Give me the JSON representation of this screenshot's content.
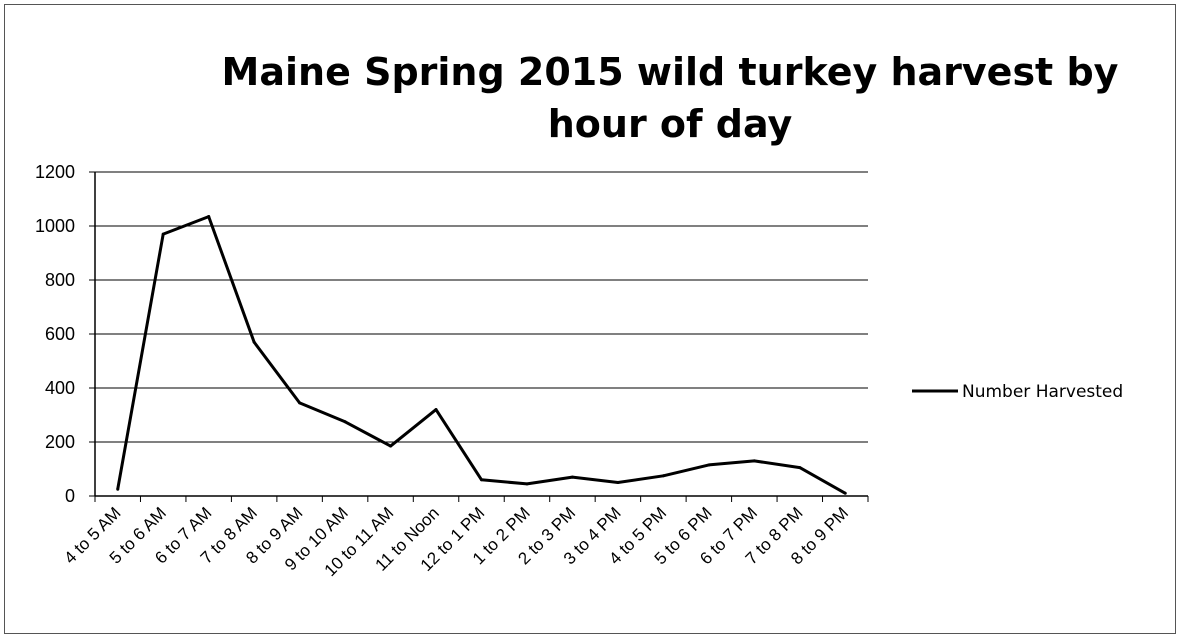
{
  "chart_data": {
    "type": "line",
    "title": "Maine Spring 2015 wild turkey harvest by hour of day",
    "xlabel": "",
    "ylabel": "",
    "ylim": [
      0,
      1200
    ],
    "yticks": [
      0,
      200,
      400,
      600,
      800,
      1000,
      1200
    ],
    "grid": true,
    "legend_position": "right",
    "categories": [
      "4 to 5 AM",
      "5 to 6 AM",
      "6 to 7 AM",
      "7 to 8 AM",
      "8 to 9 AM",
      "9 to 10 AM",
      "10 to 11 AM",
      "11 to Noon",
      "12 to 1 PM",
      "1 to 2 PM",
      "2 to 3 PM",
      "3 to 4 PM",
      "4 to 5 PM",
      "5 to 6 PM",
      "6 to 7 PM",
      "7 to 8 PM",
      "8 to 9 PM"
    ],
    "series": [
      {
        "name": "Number Harvested",
        "color": "#000000",
        "values": [
          25,
          970,
          1035,
          570,
          345,
          275,
          185,
          320,
          60,
          45,
          70,
          50,
          75,
          115,
          130,
          105,
          10
        ]
      }
    ]
  }
}
